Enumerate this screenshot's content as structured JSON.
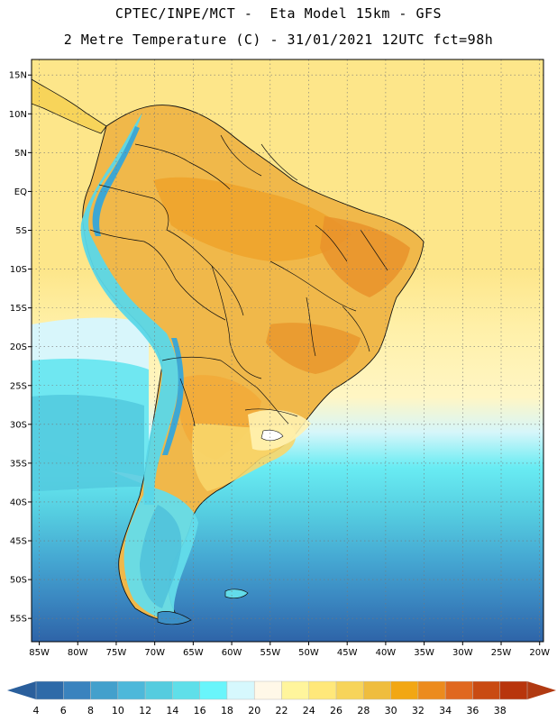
{
  "header": {
    "line1": "CPTEC/INPE/MCT -  Eta Model 15km - GFS",
    "line2": "2 Metre Temperature (C) - 31/01/2021 12UTC fct=98h"
  },
  "map": {
    "lon_range": [
      -86,
      -19.5
    ],
    "lat_range": [
      -58,
      17
    ],
    "lat_ticks": [
      {
        "v": 15,
        "label": "15N"
      },
      {
        "v": 10,
        "label": "10N"
      },
      {
        "v": 5,
        "label": "5N"
      },
      {
        "v": 0,
        "label": "EQ"
      },
      {
        "v": -5,
        "label": "5S"
      },
      {
        "v": -10,
        "label": "10S"
      },
      {
        "v": -15,
        "label": "15S"
      },
      {
        "v": -20,
        "label": "20S"
      },
      {
        "v": -25,
        "label": "25S"
      },
      {
        "v": -30,
        "label": "30S"
      },
      {
        "v": -35,
        "label": "35S"
      },
      {
        "v": -40,
        "label": "40S"
      },
      {
        "v": -45,
        "label": "45S"
      },
      {
        "v": -50,
        "label": "50S"
      },
      {
        "v": -55,
        "label": "55S"
      }
    ],
    "lon_ticks": [
      {
        "v": -85,
        "label": "85W"
      },
      {
        "v": -80,
        "label": "80W"
      },
      {
        "v": -75,
        "label": "75W"
      },
      {
        "v": -70,
        "label": "70W"
      },
      {
        "v": -65,
        "label": "65W"
      },
      {
        "v": -60,
        "label": "60W"
      },
      {
        "v": -55,
        "label": "55W"
      },
      {
        "v": -50,
        "label": "50W"
      },
      {
        "v": -45,
        "label": "45W"
      },
      {
        "v": -40,
        "label": "40W"
      },
      {
        "v": -35,
        "label": "35W"
      },
      {
        "v": -30,
        "label": "30W"
      },
      {
        "v": -25,
        "label": "25W"
      },
      {
        "v": -20,
        "label": "20W"
      }
    ],
    "gridlines": true
  },
  "colorbar": {
    "levels": [
      "4",
      "6",
      "8",
      "10",
      "12",
      "14",
      "16",
      "18",
      "20",
      "22",
      "24",
      "26",
      "28",
      "30",
      "32",
      "34",
      "36",
      "38"
    ],
    "colors": [
      "#2e6aa8",
      "#3a83be",
      "#43a0cc",
      "#4db8da",
      "#55ccdf",
      "#5fdfe9",
      "#69f5fb",
      "#d6f8fd",
      "#fff8e8",
      "#fff59c",
      "#ffe87a",
      "#f7d45a",
      "#efbd3e",
      "#f2a713",
      "#ec8b1d",
      "#e0681f",
      "#c94b12",
      "#b8350c"
    ],
    "low_color": "#2a5f9c",
    "high_color": "#b13a12"
  }
}
